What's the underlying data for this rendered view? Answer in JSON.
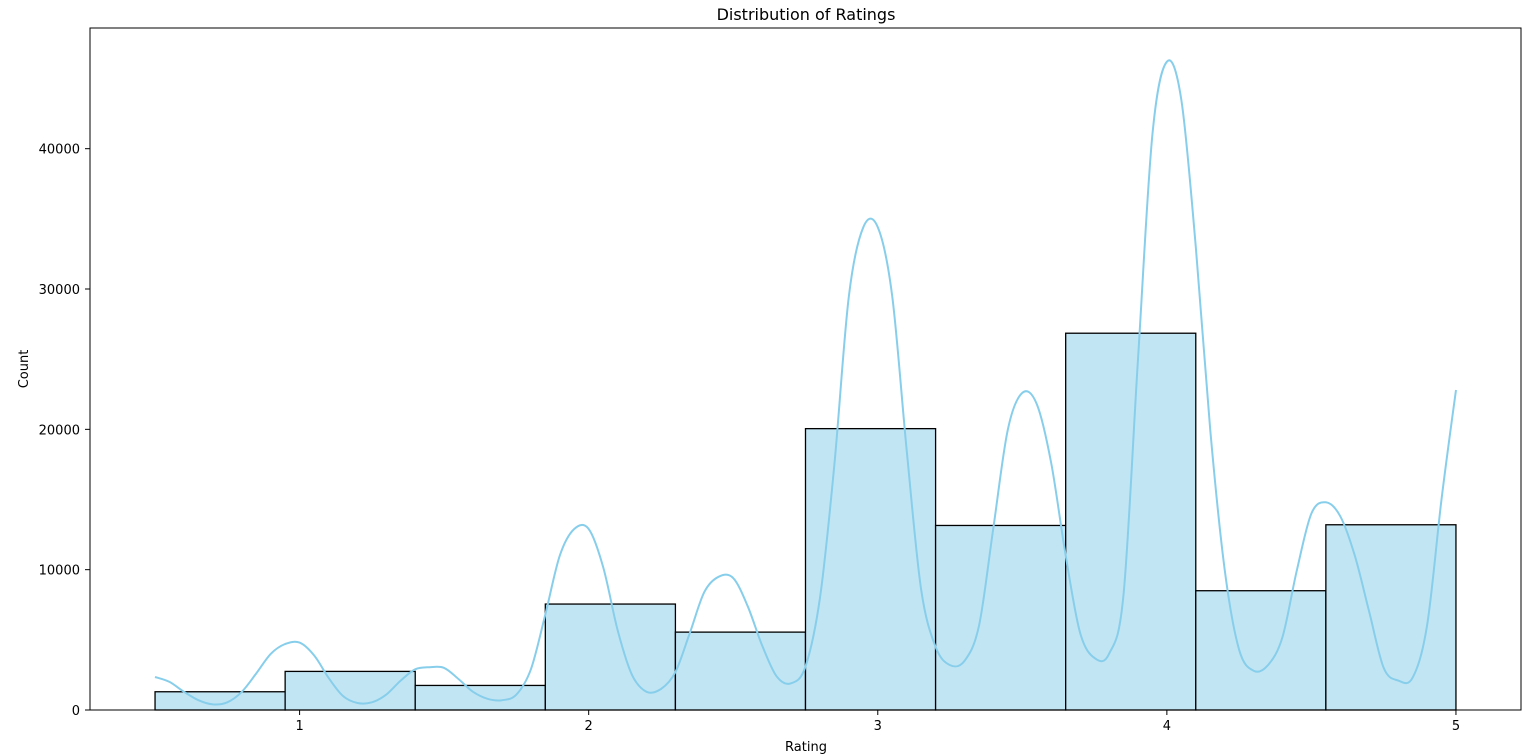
{
  "chart_data": {
    "type": "bar",
    "title": "Distribution of Ratings",
    "xlabel": "Rating",
    "ylabel": "Count",
    "xlim": [
      0.275,
      5.225
    ],
    "ylim": [
      0,
      48600
    ],
    "xticks": [
      1,
      2,
      3,
      4,
      5
    ],
    "yticks": [
      0,
      10000,
      20000,
      30000,
      40000
    ],
    "grid": false,
    "colors": {
      "bar_fill": "#c2e5f4",
      "bar_edge": "#000000",
      "kde_line": "#87ceeb"
    },
    "bins": [
      {
        "x0": 0.5,
        "x1": 0.95,
        "count": 1300
      },
      {
        "x0": 0.95,
        "x1": 1.4,
        "count": 2750
      },
      {
        "x0": 1.4,
        "x1": 1.85,
        "count": 1750
      },
      {
        "x0": 1.85,
        "x1": 2.3,
        "count": 7550
      },
      {
        "x0": 2.3,
        "x1": 2.75,
        "count": 5550
      },
      {
        "x0": 2.75,
        "x1": 3.2,
        "count": 20050
      },
      {
        "x0": 3.2,
        "x1": 3.65,
        "count": 13150
      },
      {
        "x0": 3.65,
        "x1": 4.1,
        "count": 26850
      },
      {
        "x0": 4.1,
        "x1": 4.55,
        "count": 8500
      },
      {
        "x0": 4.55,
        "x1": 5.0,
        "count": 13200
      }
    ],
    "kde": {
      "x": [
        0.5,
        0.55,
        0.6,
        0.65,
        0.7,
        0.75,
        0.8,
        0.85,
        0.9,
        0.95,
        1.0,
        1.05,
        1.1,
        1.15,
        1.2,
        1.25,
        1.3,
        1.35,
        1.4,
        1.45,
        1.5,
        1.55,
        1.6,
        1.65,
        1.7,
        1.75,
        1.8,
        1.85,
        1.9,
        1.95,
        2.0,
        2.05,
        2.1,
        2.15,
        2.2,
        2.25,
        2.3,
        2.35,
        2.4,
        2.45,
        2.5,
        2.55,
        2.6,
        2.65,
        2.7,
        2.75,
        2.8,
        2.85,
        2.9,
        2.95,
        3.0,
        3.05,
        3.1,
        3.15,
        3.2,
        3.25,
        3.3,
        3.35,
        3.4,
        3.45,
        3.5,
        3.55,
        3.6,
        3.65,
        3.7,
        3.75,
        3.8,
        3.85,
        3.9,
        3.95,
        4.0,
        4.05,
        4.1,
        4.15,
        4.2,
        4.25,
        4.3,
        4.35,
        4.4,
        4.45,
        4.5,
        4.55,
        4.6,
        4.65,
        4.7,
        4.75,
        4.8,
        4.85,
        4.9,
        4.95,
        5.0
      ],
      "y": [
        2350,
        2000,
        1300,
        700,
        400,
        550,
        1300,
        2600,
        4000,
        4700,
        4800,
        3900,
        2300,
        1000,
        500,
        550,
        1100,
        2100,
        2900,
        3050,
        3000,
        2200,
        1300,
        800,
        700,
        1100,
        2900,
        6800,
        11000,
        12900,
        12900,
        10200,
        5700,
        2500,
        1300,
        1500,
        2700,
        5500,
        8400,
        9500,
        9400,
        7400,
        4600,
        2400,
        1900,
        3100,
        8000,
        17500,
        29500,
        34400,
        34400,
        29500,
        18500,
        8600,
        4500,
        3200,
        3500,
        6000,
        13000,
        20000,
        22600,
        21800,
        17600,
        11000,
        5500,
        3700,
        4000,
        8200,
        25000,
        41000,
        46200,
        43500,
        33000,
        20000,
        10000,
        4300,
        2800,
        3200,
        5200,
        10000,
        14000,
        14800,
        13800,
        11000,
        7000,
        3000,
        2100,
        2300,
        6000,
        15000,
        22800
      ]
    }
  }
}
